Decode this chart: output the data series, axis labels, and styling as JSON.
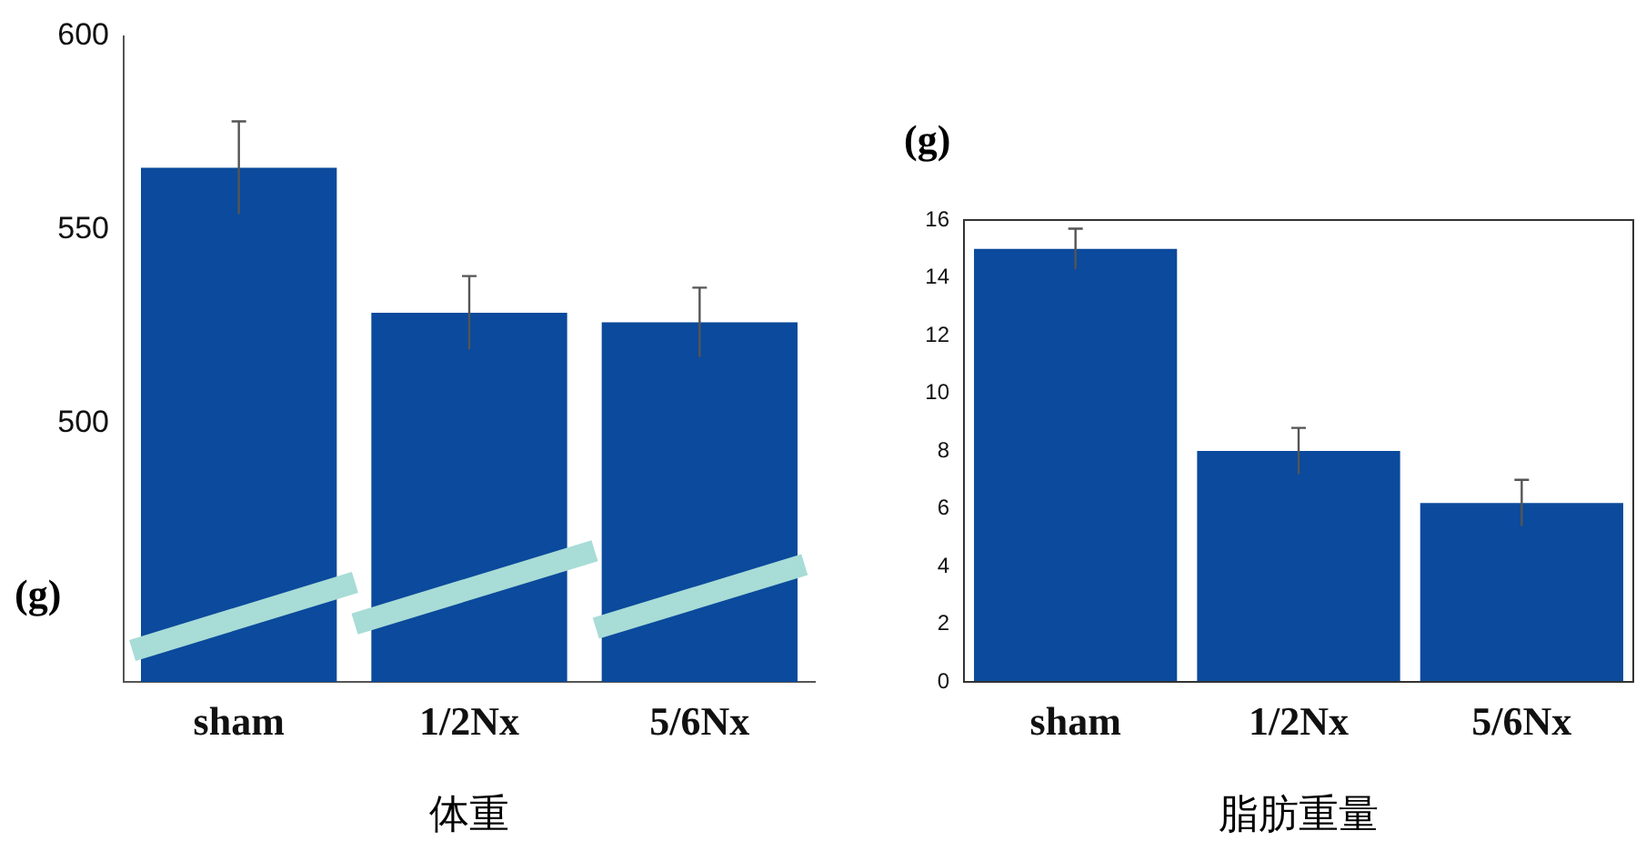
{
  "chart_data": [
    {
      "type": "bar",
      "xlabel": "体重",
      "ylabel": "(g)",
      "categories": [
        "sham",
        "1/2Nx",
        "5/6Nx"
      ],
      "values": [
        566,
        528.5,
        526
      ],
      "errors": [
        12,
        9.5,
        9
      ],
      "color": "#0b4a9c",
      "ylim": [
        433,
        600
      ],
      "yticks": [
        500,
        550,
        600
      ],
      "grid": false,
      "legend": false
    },
    {
      "type": "bar",
      "xlabel": "脂肪重量",
      "ylabel": "(g)",
      "categories": [
        "sham",
        "1/2Nx",
        "5/6Nx"
      ],
      "values": [
        15,
        8,
        6.2
      ],
      "errors": [
        0.7,
        0.8,
        0.8
      ],
      "color": "#0b4a9c",
      "ylim": [
        0,
        16
      ],
      "yticks": [
        0,
        2,
        4,
        6,
        8,
        10,
        12,
        14,
        16
      ],
      "grid": false,
      "legend": false
    }
  ]
}
